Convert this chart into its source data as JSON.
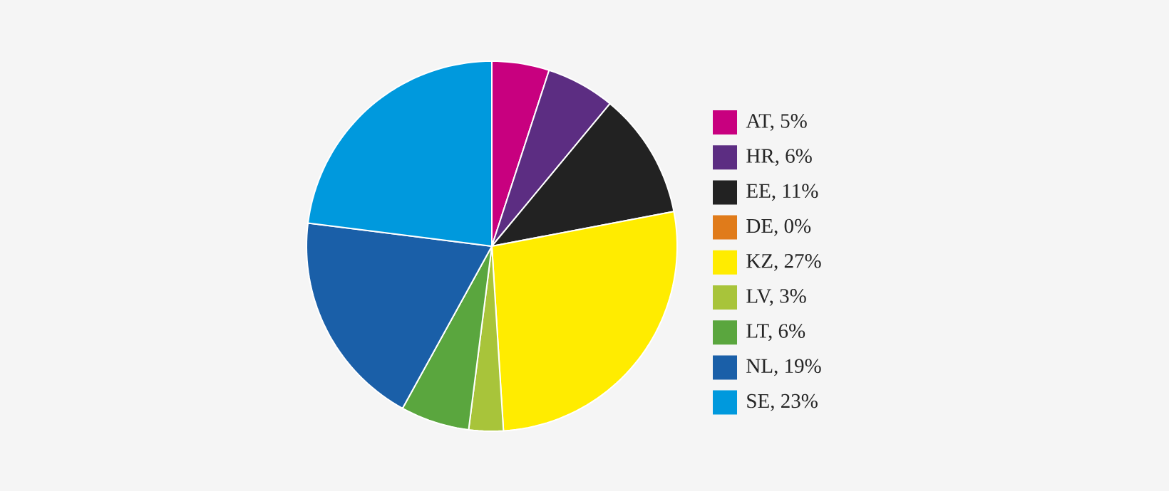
{
  "chart_data": {
    "type": "pie",
    "categories": [
      "AT, 5%",
      "HR, 6%",
      "EE, 11%",
      "DE, 0%",
      "KZ, 27%",
      "LV, 3%",
      "LT, 6%",
      "NL, 19%",
      "SE, 23%"
    ],
    "values": [
      5,
      6,
      11,
      0,
      27,
      3,
      6,
      19,
      23
    ],
    "colors": [
      "#c8007f",
      "#5c2d82",
      "#222222",
      "#e07b1a",
      "#ffec00",
      "#a8c43a",
      "#5aa63e",
      "#1a5fa8",
      "#0099dd"
    ],
    "legend": "right"
  }
}
